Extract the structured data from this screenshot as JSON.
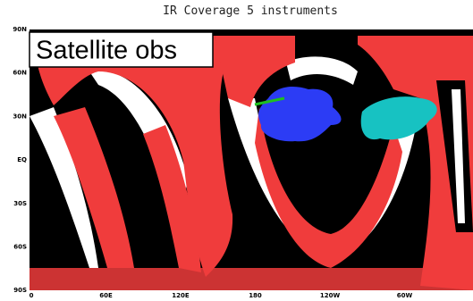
{
  "title": "IR Coverage 5 instruments",
  "label": "Satellite obs",
  "lat_labels": [
    "90N",
    "60N",
    "30N",
    "EQ",
    "30S",
    "60S",
    "90S"
  ],
  "lon_labels": [
    "0",
    "60E",
    "120E",
    "180",
    "120W",
    "60W"
  ]
}
